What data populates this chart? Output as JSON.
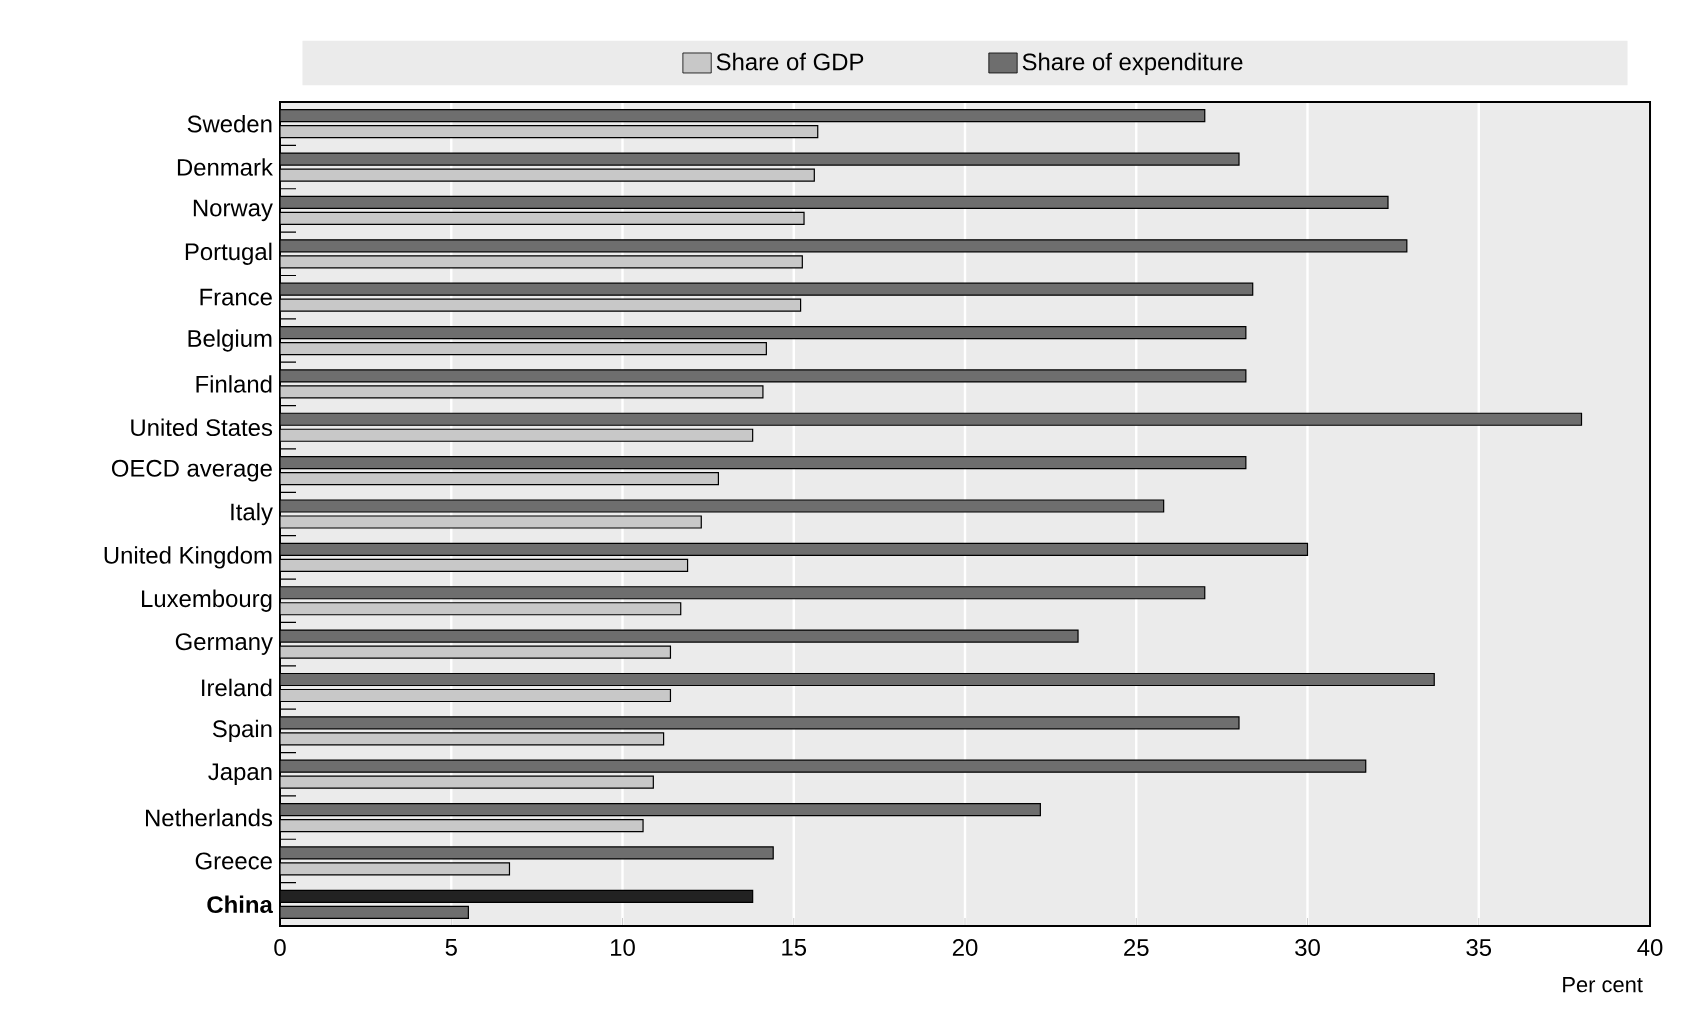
{
  "chart_data": {
    "type": "bar",
    "orientation": "horizontal",
    "xlabel": "Per cent",
    "categories": [
      "Sweden",
      "Denmark",
      "Norway",
      "Portugal",
      "France",
      "Belgium",
      "Finland",
      "United States",
      "OECD average",
      "Italy",
      "United Kingdom",
      "Luxembourg",
      "Germany",
      "Ireland",
      "Spain",
      "Japan",
      "Netherlands",
      "Greece",
      "**China**"
    ],
    "series": [
      {
        "name": "Share of GDP",
        "color": "#c8c8c8",
        "colors": [
          "#c8c8c8",
          "#c8c8c8",
          "#c8c8c8",
          "#c8c8c8",
          "#c8c8c8",
          "#c8c8c8",
          "#c8c8c8",
          "#c8c8c8",
          "#c8c8c8",
          "#c8c8c8",
          "#c8c8c8",
          "#c8c8c8",
          "#c8c8c8",
          "#c8c8c8",
          "#c8c8c8",
          "#c8c8c8",
          "#c8c8c8",
          "#c8c8c8",
          "#6e6e6e"
        ],
        "values": [
          15.7,
          15.6,
          15.3,
          15.25,
          15.2,
          14.2,
          14.1,
          13.8,
          12.8,
          12.3,
          11.9,
          11.7,
          11.4,
          11.4,
          11.2,
          10.9,
          10.6,
          6.7,
          5.5
        ]
      },
      {
        "name": "Share of expenditure",
        "color": "#6e6e6e",
        "colors": [
          "#6e6e6e",
          "#6e6e6e",
          "#6e6e6e",
          "#6e6e6e",
          "#6e6e6e",
          "#6e6e6e",
          "#6e6e6e",
          "#6e6e6e",
          "#6e6e6e",
          "#6e6e6e",
          "#6e6e6e",
          "#6e6e6e",
          "#6e6e6e",
          "#6e6e6e",
          "#6e6e6e",
          "#6e6e6e",
          "#6e6e6e",
          "#6e6e6e",
          "#222222"
        ],
        "values": [
          27.0,
          28.0,
          32.35,
          32.9,
          28.4,
          28.2,
          28.2,
          38.0,
          28.2,
          25.8,
          30.0,
          27.0,
          23.3,
          33.7,
          28.0,
          31.7,
          22.2,
          14.4,
          13.8
        ]
      }
    ],
    "xlim": [
      0,
      40
    ],
    "xticks": [
      0,
      5,
      10,
      15,
      20,
      25,
      30,
      35,
      40
    ],
    "grid": "x",
    "legend": "top"
  }
}
